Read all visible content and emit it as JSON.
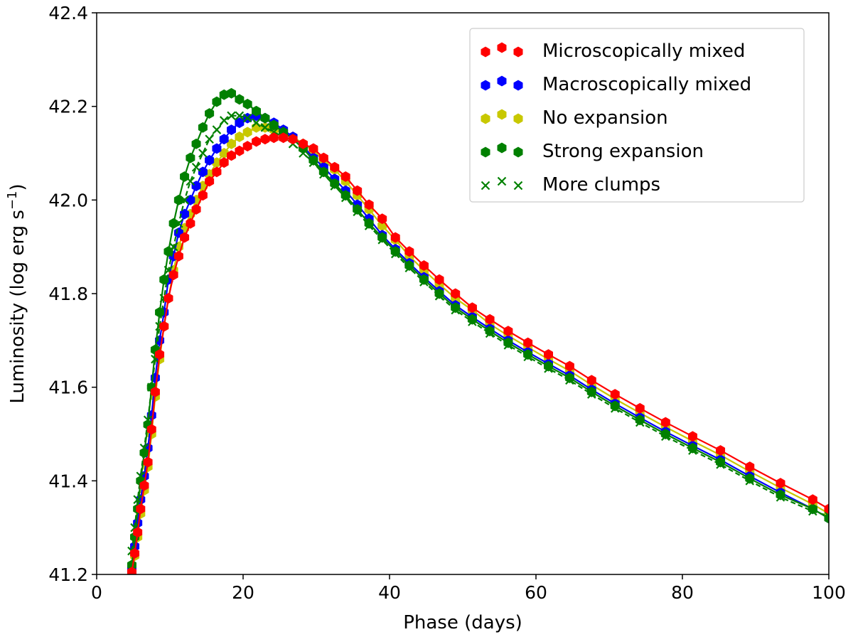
{
  "chart_data": {
    "type": "line",
    "title": "",
    "xlabel": "Phase (days)",
    "ylabel": "Luminosity (log erg s",
    "ylabel_sup": "−1",
    "ylabel_end": ")",
    "xlim": [
      0,
      100
    ],
    "ylim": [
      41.2,
      42.4
    ],
    "xticks": [
      0,
      20,
      40,
      60,
      80,
      100
    ],
    "yticks": [
      41.2,
      41.4,
      41.6,
      41.8,
      42.0,
      42.2,
      42.4
    ],
    "ytick_labels": [
      "41.2",
      "41.4",
      "41.6",
      "41.8",
      "42.0",
      "42.2",
      "42.4"
    ],
    "grid": false,
    "legend_position": "top-right",
    "series": [
      {
        "name": "Microscopically mixed",
        "color": "#ff0000",
        "marker": "hexagon",
        "linestyle": "solid",
        "x": [
          4.8,
          5.2,
          5.6,
          6.0,
          6.5,
          7.0,
          7.5,
          8.0,
          8.6,
          9.2,
          9.8,
          10.5,
          11.2,
          12.0,
          12.8,
          13.6,
          14.5,
          15.4,
          16.4,
          17.4,
          18.4,
          19.5,
          20.6,
          21.8,
          23.0,
          24.2,
          25.5,
          26.8,
          28.2,
          29.6,
          31.0,
          32.5,
          34.0,
          35.6,
          37.2,
          39.0,
          40.8,
          42.7,
          44.7,
          46.8,
          49.0,
          51.3,
          53.7,
          56.2,
          58.9,
          61.7,
          64.6,
          67.6,
          70.8,
          74.2,
          77.7,
          81.4,
          85.2,
          89.2,
          93.4,
          97.8,
          100
        ],
        "y": [
          41.205,
          41.245,
          41.29,
          41.34,
          41.39,
          41.44,
          41.51,
          41.59,
          41.67,
          41.73,
          41.79,
          41.84,
          41.88,
          41.92,
          41.95,
          41.98,
          42.01,
          42.04,
          42.06,
          42.08,
          42.095,
          42.105,
          42.115,
          42.125,
          42.13,
          42.133,
          42.133,
          42.13,
          42.12,
          42.11,
          42.09,
          42.07,
          42.05,
          42.02,
          41.99,
          41.96,
          41.92,
          41.89,
          41.86,
          41.83,
          41.8,
          41.77,
          41.745,
          41.72,
          41.695,
          41.67,
          41.645,
          41.615,
          41.585,
          41.555,
          41.525,
          41.495,
          41.465,
          41.43,
          41.395,
          41.36,
          41.34
        ]
      },
      {
        "name": "Macroscopically mixed",
        "color": "#0000ff",
        "marker": "hexagon",
        "linestyle": "solid",
        "x": [
          4.8,
          5.2,
          5.6,
          6.0,
          6.5,
          7.0,
          7.5,
          8.0,
          8.6,
          9.2,
          9.8,
          10.5,
          11.2,
          12.0,
          12.8,
          13.6,
          14.5,
          15.4,
          16.4,
          17.4,
          18.4,
          19.5,
          20.6,
          21.8,
          23.0,
          24.2,
          25.5,
          26.8,
          28.2,
          29.6,
          31.0,
          32.5,
          34.0,
          35.6,
          37.2,
          39.0,
          40.8,
          42.7,
          44.7,
          46.8,
          49.0,
          51.3,
          53.7,
          56.2,
          58.9,
          61.7,
          64.6,
          67.6,
          70.8,
          74.2,
          77.7,
          81.4,
          85.2,
          89.2,
          93.4,
          97.8,
          100
        ],
        "y": [
          41.21,
          41.26,
          41.31,
          41.36,
          41.41,
          41.47,
          41.54,
          41.62,
          41.7,
          41.76,
          41.83,
          41.88,
          41.93,
          41.97,
          42.0,
          42.03,
          42.06,
          42.085,
          42.11,
          42.13,
          42.15,
          42.165,
          42.175,
          42.18,
          42.175,
          42.165,
          42.15,
          42.135,
          42.115,
          42.09,
          42.07,
          42.045,
          42.02,
          41.99,
          41.96,
          41.925,
          41.895,
          41.865,
          41.835,
          41.805,
          41.775,
          41.75,
          41.725,
          41.7,
          41.675,
          41.65,
          41.625,
          41.595,
          41.565,
          41.535,
          41.505,
          41.475,
          41.445,
          41.41,
          41.375,
          41.34,
          41.32
        ]
      },
      {
        "name": "No expansion",
        "color": "#c8c800",
        "marker": "hexagon",
        "linestyle": "solid",
        "x": [
          4.8,
          5.2,
          5.6,
          6.0,
          6.5,
          7.0,
          7.5,
          8.0,
          8.6,
          9.2,
          9.8,
          10.5,
          11.2,
          12.0,
          12.8,
          13.6,
          14.5,
          15.4,
          16.4,
          17.4,
          18.4,
          19.5,
          20.6,
          21.8,
          23.0,
          24.2,
          25.5,
          26.8,
          28.2,
          29.6,
          31.0,
          32.5,
          34.0,
          35.6,
          37.2,
          39.0,
          40.8,
          42.7,
          44.7,
          46.8,
          49.0,
          51.3,
          53.7,
          56.2,
          58.9,
          61.7,
          64.6,
          67.6,
          70.8,
          74.2,
          77.7,
          81.4,
          85.2,
          89.2,
          93.4,
          97.8,
          100
        ],
        "y": [
          41.2,
          41.24,
          41.28,
          41.33,
          41.38,
          41.43,
          41.5,
          41.58,
          41.66,
          41.73,
          41.79,
          41.85,
          41.9,
          41.94,
          41.97,
          42.0,
          42.03,
          42.055,
          42.08,
          42.1,
          42.12,
          42.135,
          42.145,
          42.155,
          42.155,
          42.15,
          42.145,
          42.135,
          42.12,
          42.105,
          42.085,
          42.065,
          42.04,
          42.01,
          41.98,
          41.945,
          41.915,
          41.88,
          41.85,
          41.82,
          41.79,
          41.765,
          41.735,
          41.71,
          41.685,
          41.66,
          41.635,
          41.605,
          41.575,
          41.545,
          41.515,
          41.485,
          41.455,
          41.42,
          41.385,
          41.35,
          41.33
        ]
      },
      {
        "name": "Strong expansion",
        "color": "#008000",
        "marker": "hexagon",
        "linestyle": "solid",
        "x": [
          4.8,
          5.2,
          5.6,
          6.0,
          6.5,
          7.0,
          7.5,
          8.0,
          8.6,
          9.2,
          9.8,
          10.5,
          11.2,
          12.0,
          12.8,
          13.6,
          14.5,
          15.4,
          16.4,
          17.4,
          18.4,
          19.5,
          20.6,
          21.8,
          23.0,
          24.2,
          25.5,
          26.8,
          28.2,
          29.6,
          31.0,
          32.5,
          34.0,
          35.6,
          37.2,
          39.0,
          40.8,
          42.7,
          44.7,
          46.8,
          49.0,
          51.3,
          53.7,
          56.2,
          58.9,
          61.7,
          64.6,
          67.6,
          70.8,
          74.2,
          77.7,
          81.4,
          85.2,
          89.2,
          93.4,
          97.8,
          100
        ],
        "y": [
          41.22,
          41.28,
          41.34,
          41.4,
          41.46,
          41.52,
          41.6,
          41.68,
          41.76,
          41.83,
          41.89,
          41.95,
          42.0,
          42.05,
          42.09,
          42.12,
          42.155,
          42.185,
          42.21,
          42.225,
          42.228,
          42.215,
          42.205,
          42.19,
          42.175,
          42.16,
          42.145,
          42.13,
          42.11,
          42.085,
          42.06,
          42.035,
          42.01,
          41.98,
          41.95,
          41.92,
          41.89,
          41.86,
          41.83,
          41.8,
          41.77,
          41.745,
          41.72,
          41.695,
          41.67,
          41.645,
          41.62,
          41.59,
          41.56,
          41.53,
          41.5,
          41.47,
          41.44,
          41.405,
          41.37,
          41.34,
          41.32
        ]
      },
      {
        "name": "More clumps",
        "color": "#008000",
        "marker": "x",
        "linestyle": "dashed",
        "x": [
          4.8,
          5.2,
          5.6,
          6.0,
          6.5,
          7.0,
          7.5,
          8.0,
          8.6,
          9.2,
          9.8,
          10.5,
          11.2,
          12.0,
          12.8,
          13.6,
          14.5,
          15.4,
          16.4,
          17.4,
          18.4,
          19.5,
          20.6,
          21.8,
          23.0,
          24.2,
          25.5,
          26.8,
          28.2,
          29.6,
          31.0,
          32.5,
          34.0,
          35.6,
          37.2,
          39.0,
          40.8,
          42.7,
          44.7,
          46.8,
          49.0,
          51.3,
          53.7,
          56.2,
          58.9,
          61.7,
          64.6,
          67.6,
          70.8,
          74.2,
          77.7,
          81.4,
          85.2,
          89.2,
          93.4,
          97.8,
          100
        ],
        "y": [
          41.25,
          41.3,
          41.36,
          41.41,
          41.47,
          41.53,
          41.6,
          41.66,
          41.73,
          41.79,
          41.85,
          41.9,
          41.95,
          42.0,
          42.04,
          42.07,
          42.1,
          42.13,
          42.15,
          42.17,
          42.18,
          42.18,
          42.175,
          42.165,
          42.155,
          42.145,
          42.135,
          42.12,
          42.1,
          42.08,
          42.055,
          42.03,
          42.005,
          41.975,
          41.945,
          41.915,
          41.885,
          41.855,
          41.825,
          41.795,
          41.765,
          41.74,
          41.715,
          41.69,
          41.665,
          41.64,
          41.615,
          41.585,
          41.555,
          41.525,
          41.495,
          41.465,
          41.435,
          41.4,
          41.365,
          41.335,
          41.325
        ]
      }
    ]
  }
}
